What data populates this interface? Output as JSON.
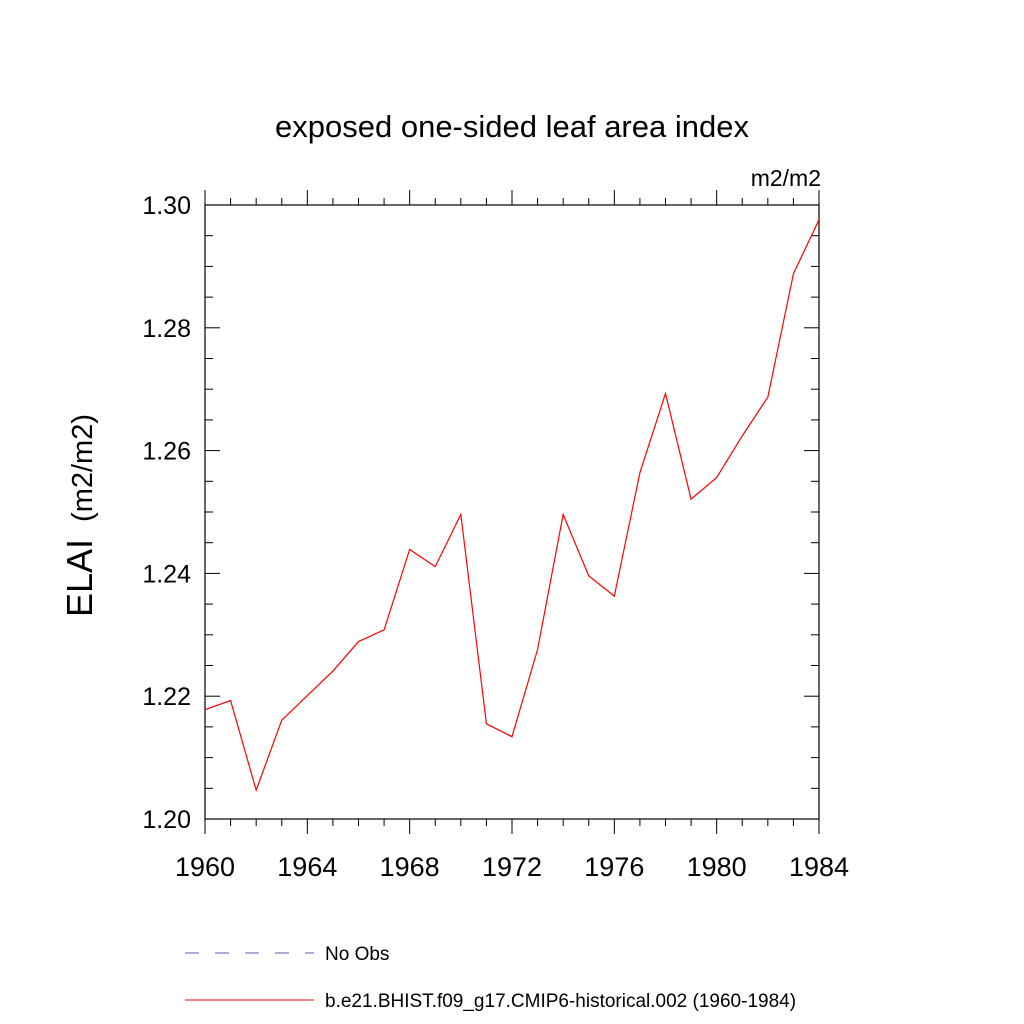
{
  "chart_data": {
    "type": "line",
    "title": "exposed one-sided leaf area index",
    "units": "m2/m2",
    "ylabel_main": "ELAI",
    "ylabel_units": "(m2/m2)",
    "xlabel": "",
    "xlim": [
      1960,
      1984
    ],
    "ylim": [
      1.2,
      1.3
    ],
    "xticks": [
      1960,
      1964,
      1968,
      1972,
      1976,
      1980,
      1984
    ],
    "yticks": [
      1.2,
      1.22,
      1.24,
      1.26,
      1.28,
      1.3
    ],
    "ytick_labels": [
      "1.20",
      "1.22",
      "1.24",
      "1.26",
      "1.28",
      "1.30"
    ],
    "grid": false,
    "legend_position": "bottom",
    "series": [
      {
        "name": "b.e21.BHIST.f09_g17.CMIP6-historical.002 (1960-1984)",
        "color": "#ff0000",
        "style": "solid",
        "x": [
          1960,
          1961,
          1962,
          1963,
          1964,
          1965,
          1966,
          1967,
          1968,
          1969,
          1970,
          1971,
          1972,
          1973,
          1974,
          1975,
          1976,
          1977,
          1978,
          1979,
          1980,
          1981,
          1982,
          1983,
          1984
        ],
        "values": [
          1.2178,
          1.2193,
          1.2047,
          1.2161,
          1.2201,
          1.2241,
          1.2289,
          1.2308,
          1.2439,
          1.2411,
          1.2496,
          1.2155,
          1.2134,
          1.2276,
          1.2496,
          1.2396,
          1.2363,
          1.2564,
          1.2693,
          1.2521,
          1.2556,
          1.2624,
          1.2687,
          1.2888,
          1.2976
        ]
      }
    ],
    "legend": [
      {
        "label": "No Obs",
        "color": "#5b5bb8",
        "style": "dashed"
      },
      {
        "label": "b.e21.BHIST.f09_g17.CMIP6-historical.002 (1960-1984)",
        "color": "#ff0000",
        "style": "solid"
      }
    ]
  }
}
